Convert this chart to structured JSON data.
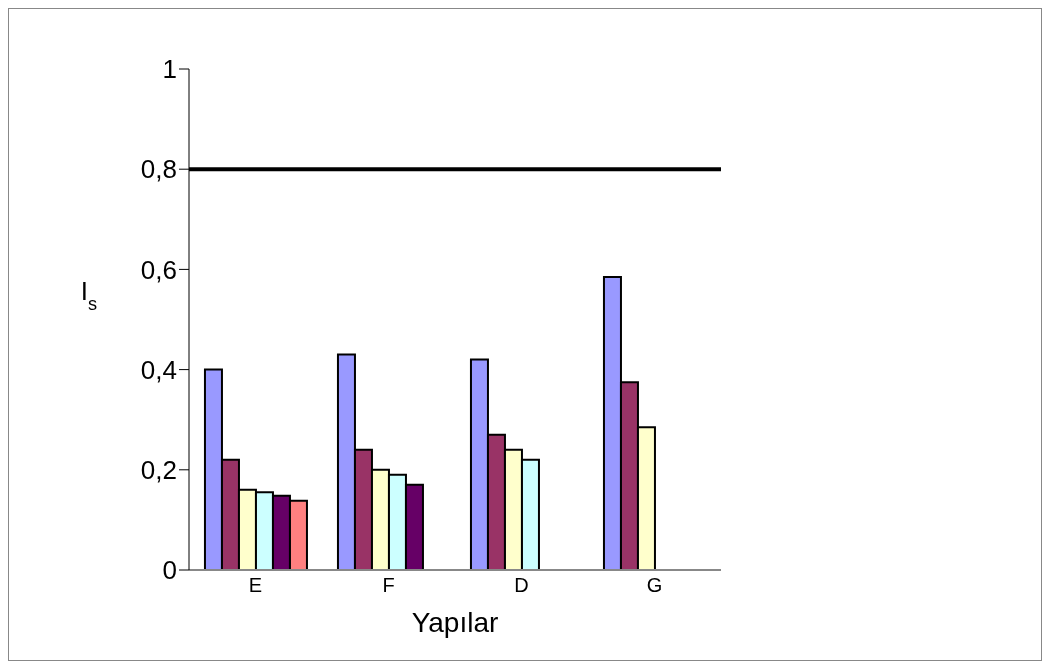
{
  "chart_data": {
    "type": "bar",
    "xlabel": "Yapılar",
    "ylabel": "I$_{s}$",
    "categories": [
      "E",
      "F",
      "D",
      "G"
    ],
    "series": [
      {
        "color": "#9999ff",
        "values": [
          0.4,
          0.43,
          0.42,
          0.585
        ]
      },
      {
        "color": "#993366",
        "values": [
          0.22,
          0.24,
          0.27,
          0.375
        ]
      },
      {
        "color": "#ffffcc",
        "values": [
          0.16,
          0.2,
          0.24,
          0.285
        ]
      },
      {
        "color": "#ccffff",
        "values": [
          0.155,
          0.19,
          0.22,
          null
        ]
      },
      {
        "color": "#660066",
        "values": [
          0.148,
          0.17,
          null,
          null
        ]
      },
      {
        "color": "#ff8080",
        "values": [
          0.138,
          null,
          null,
          null
        ]
      }
    ],
    "ylim": [
      0,
      1
    ],
    "yticks": [
      0,
      {
        "value": 0.2,
        "label": "0,2"
      },
      {
        "value": 0.4,
        "label": "0,4"
      },
      {
        "value": 0.6,
        "label": "0,6"
      },
      {
        "value": 0.8,
        "label": "0,8"
      },
      1
    ],
    "ref_lines": [
      {
        "axis": "y",
        "value": 0.8,
        "color": "#000000"
      }
    ],
    "grid": false,
    "legend": false
  }
}
